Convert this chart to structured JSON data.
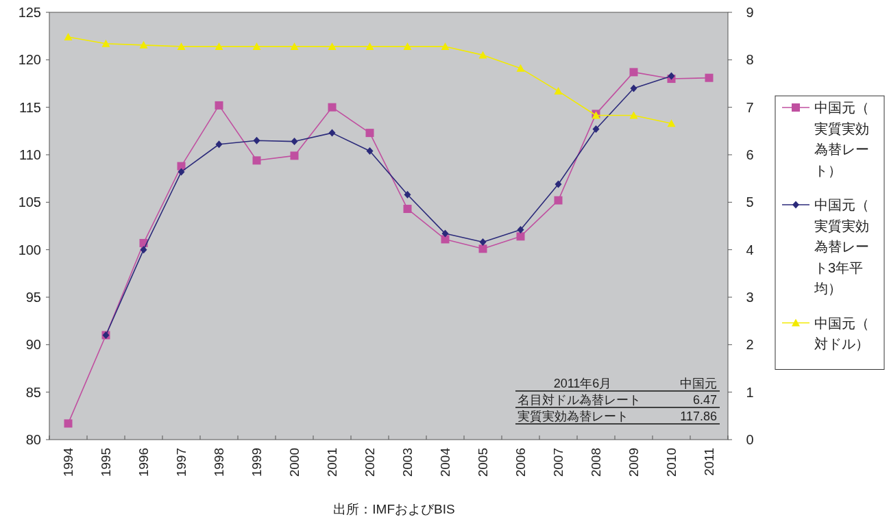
{
  "chart_data": {
    "type": "line",
    "categories": [
      "1994",
      "1995",
      "1996",
      "1997",
      "1998",
      "1999",
      "2000",
      "2001",
      "2002",
      "2003",
      "2004",
      "2005",
      "2006",
      "2007",
      "2008",
      "2009",
      "2010",
      "2011"
    ],
    "series": [
      {
        "name": "中国元（実質実効為替レート）",
        "color": "#c050a0",
        "marker": "square",
        "values": [
          81.7,
          91.0,
          100.7,
          108.8,
          115.2,
          109.4,
          109.9,
          115.0,
          112.3,
          104.3,
          101.1,
          100.1,
          101.4,
          105.2,
          114.3,
          118.7,
          118.0,
          118.1
        ]
      },
      {
        "name": "中国元（実質実効為替レート3年平均）",
        "color": "#2b2a7a",
        "marker": "diamond",
        "values": [
          null,
          91.0,
          100.0,
          108.2,
          111.1,
          111.5,
          111.4,
          112.3,
          110.4,
          105.8,
          101.7,
          100.8,
          102.1,
          106.9,
          112.7,
          117.0,
          118.3,
          null
        ]
      },
      {
        "name": "中国元（対ドル）",
        "color": "#f2ea00",
        "marker": "triangle",
        "axis": "y2",
        "values": [
          8.48,
          8.34,
          8.31,
          8.28,
          8.28,
          8.28,
          8.28,
          8.28,
          8.28,
          8.28,
          8.28,
          8.1,
          7.82,
          7.34,
          6.83,
          6.83,
          6.66,
          null
        ]
      }
    ],
    "ylim": [
      80,
      125
    ],
    "yticks": [
      80,
      85,
      90,
      95,
      100,
      105,
      110,
      115,
      120,
      125
    ],
    "y2lim": [
      0,
      9
    ],
    "y2ticks": [
      0,
      1,
      2,
      3,
      4,
      5,
      6,
      7,
      8,
      9
    ],
    "legend": "right",
    "line_style": "solid",
    "annotations": [
      "2011年6月",
      "中国元",
      "名目対ドル為替レート",
      "6.47",
      "実質実効為替レート",
      "117.86",
      "出所：IMFおよびBIS"
    ]
  }
}
